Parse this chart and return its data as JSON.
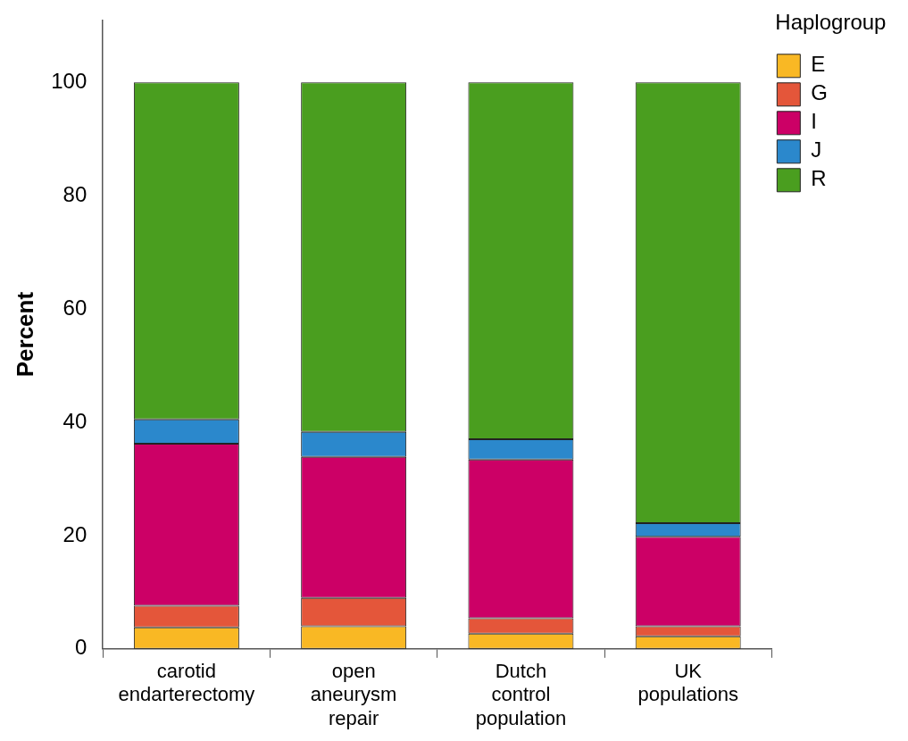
{
  "chart_data": {
    "type": "bar",
    "stacked": true,
    "ylabel": "Percent",
    "legend_title": "Haplogroup",
    "legend": "top right",
    "grid": false,
    "categories": [
      "carotid endarterectomy",
      "open aneurysm repair",
      "Dutch control population",
      "UK populations"
    ],
    "ylim": [
      0,
      111
    ],
    "yticks": [
      0,
      20,
      40,
      60,
      80,
      100
    ],
    "series": [
      {
        "name": "E",
        "color": "#f9b824",
        "values": [
          3.8,
          4.0,
          2.7,
          2.2
        ]
      },
      {
        "name": "G",
        "color": "#e4563a",
        "values": [
          3.8,
          5.0,
          2.7,
          1.8
        ]
      },
      {
        "name": "I",
        "color": "#cc0066",
        "values": [
          28.6,
          24.9,
          28.0,
          15.8
        ]
      },
      {
        "name": "J",
        "color": "#2b88cc",
        "values": [
          4.3,
          4.4,
          3.6,
          2.4
        ]
      },
      {
        "name": "R",
        "color": "#4a9e1f",
        "values": [
          59.5,
          61.7,
          63.0,
          77.8
        ]
      }
    ]
  }
}
